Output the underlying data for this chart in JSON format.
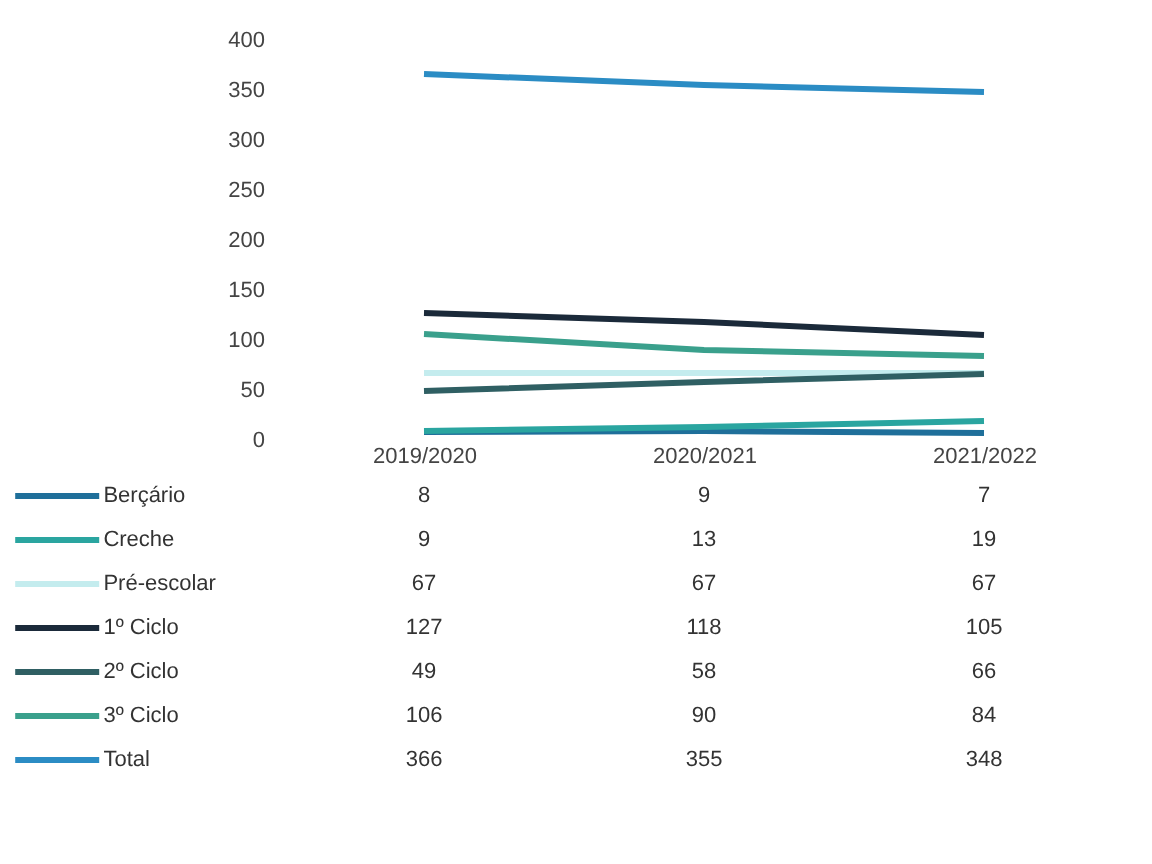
{
  "chart_data": {
    "type": "line",
    "categories": [
      "2019/2020",
      "2020/2021",
      "2021/2022"
    ],
    "series": [
      {
        "name": "Berçário",
        "color": "#1f6f9a",
        "values": [
          8,
          9,
          7
        ],
        "value_labels": [
          "8",
          "9",
          "7"
        ]
      },
      {
        "name": "Creche",
        "color": "#2aa5a0",
        "values": [
          9,
          13,
          19
        ],
        "value_labels": [
          "9",
          "13",
          "19"
        ]
      },
      {
        "name": "Pré-escolar",
        "color": "#c4ecee",
        "values": [
          67,
          67,
          67
        ],
        "value_labels": [
          "67",
          "67",
          "67"
        ]
      },
      {
        "name": "1º Ciclo",
        "color": "#1b2a3a",
        "values": [
          127,
          118,
          105
        ],
        "value_labels": [
          "127",
          "118",
          "105"
        ]
      },
      {
        "name": "2º Ciclo",
        "color": "#2f5f63",
        "values": [
          49,
          58,
          66
        ],
        "value_labels": [
          "49",
          "58",
          "66"
        ]
      },
      {
        "name": "3º Ciclo",
        "color": "#3aa08c",
        "values": [
          106,
          90,
          84
        ],
        "value_labels": [
          "106",
          "90",
          "84"
        ]
      },
      {
        "name": "Total",
        "color": "#2b8cc4",
        "values": [
          366,
          355,
          348
        ],
        "value_labels": [
          "366",
          "355",
          "348"
        ]
      }
    ],
    "ylim": [
      0,
      400
    ],
    "yticks": [
      0,
      50,
      100,
      150,
      200,
      250,
      300,
      350,
      400
    ],
    "grid": false,
    "legend": "bottom"
  }
}
